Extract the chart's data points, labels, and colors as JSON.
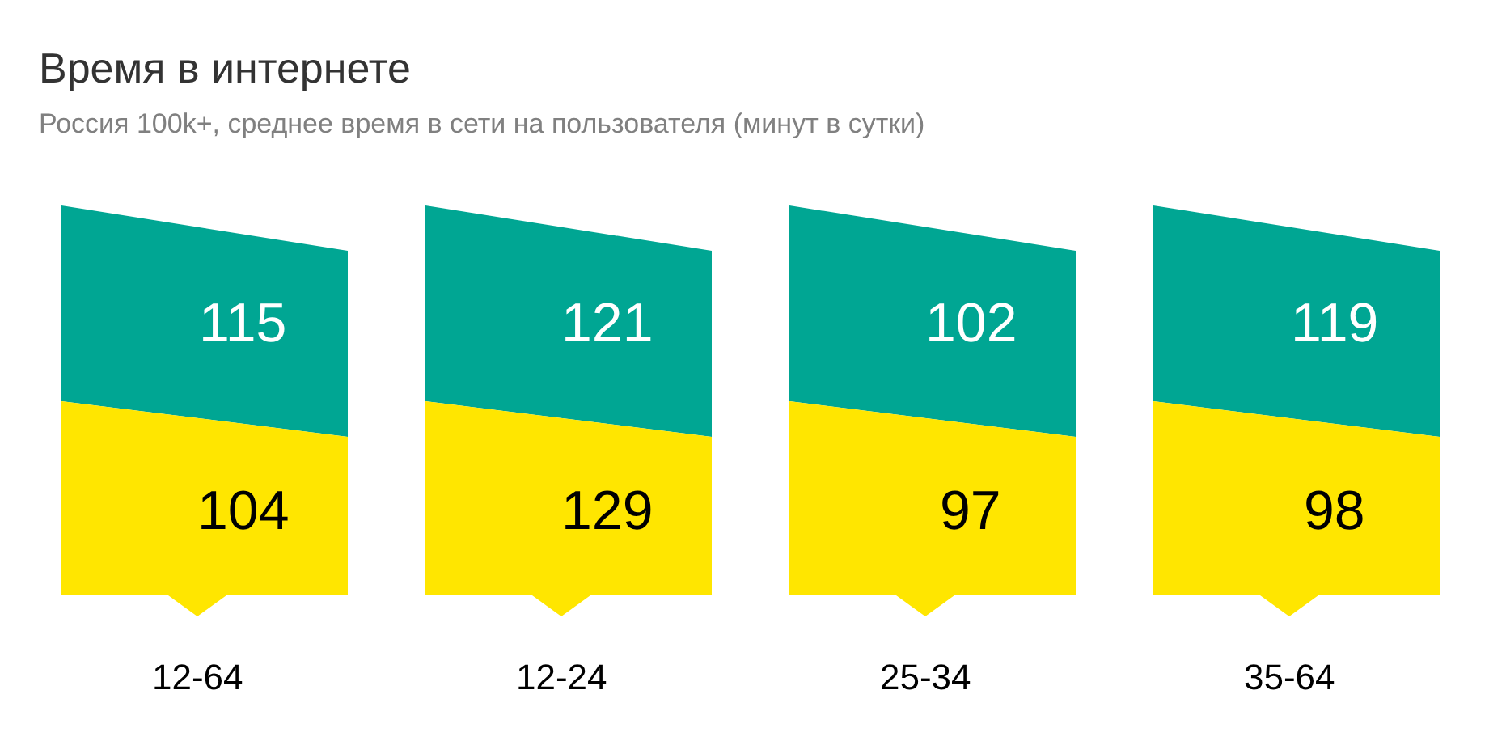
{
  "chart_data": {
    "type": "other",
    "title": "Время в интернете",
    "subtitle": "Россия 100k+, среднее время в сети на пользователя (минут в сутки)",
    "categories": [
      "12-64",
      "12-24",
      "25-34",
      "35-64"
    ],
    "series": [
      {
        "color": "#00a693",
        "values": [
          115,
          121,
          102,
          119
        ]
      },
      {
        "color": "#ffe600",
        "values": [
          104,
          129,
          97,
          98
        ]
      }
    ],
    "data_labels": true
  }
}
